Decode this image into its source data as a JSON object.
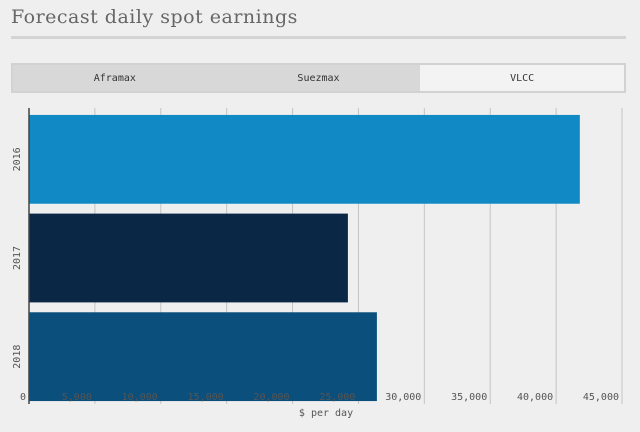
{
  "title": "Forecast daily spot earnings",
  "tabs": [
    {
      "label": "Aframax",
      "active": false
    },
    {
      "label": "Suezmax",
      "active": false
    },
    {
      "label": "VLCC",
      "active": true
    }
  ],
  "chart_data": {
    "type": "bar",
    "orientation": "horizontal",
    "categories": [
      "2016",
      "2017",
      "2018"
    ],
    "values": [
      41800,
      24200,
      26400
    ],
    "colors": [
      "#1189c5",
      "#0a2846",
      "#0b4f7c"
    ],
    "xlabel": "$ per day",
    "xlim": [
      0,
      45000
    ],
    "xticks": [
      0,
      5000,
      10000,
      15000,
      20000,
      25000,
      30000,
      35000,
      40000,
      45000
    ],
    "xtick_labels": [
      "0",
      "5,000",
      "10,000",
      "15,000",
      "20,000",
      "25,000",
      "30,000",
      "35,000",
      "40,000",
      "45,000"
    ],
    "grid": true
  }
}
